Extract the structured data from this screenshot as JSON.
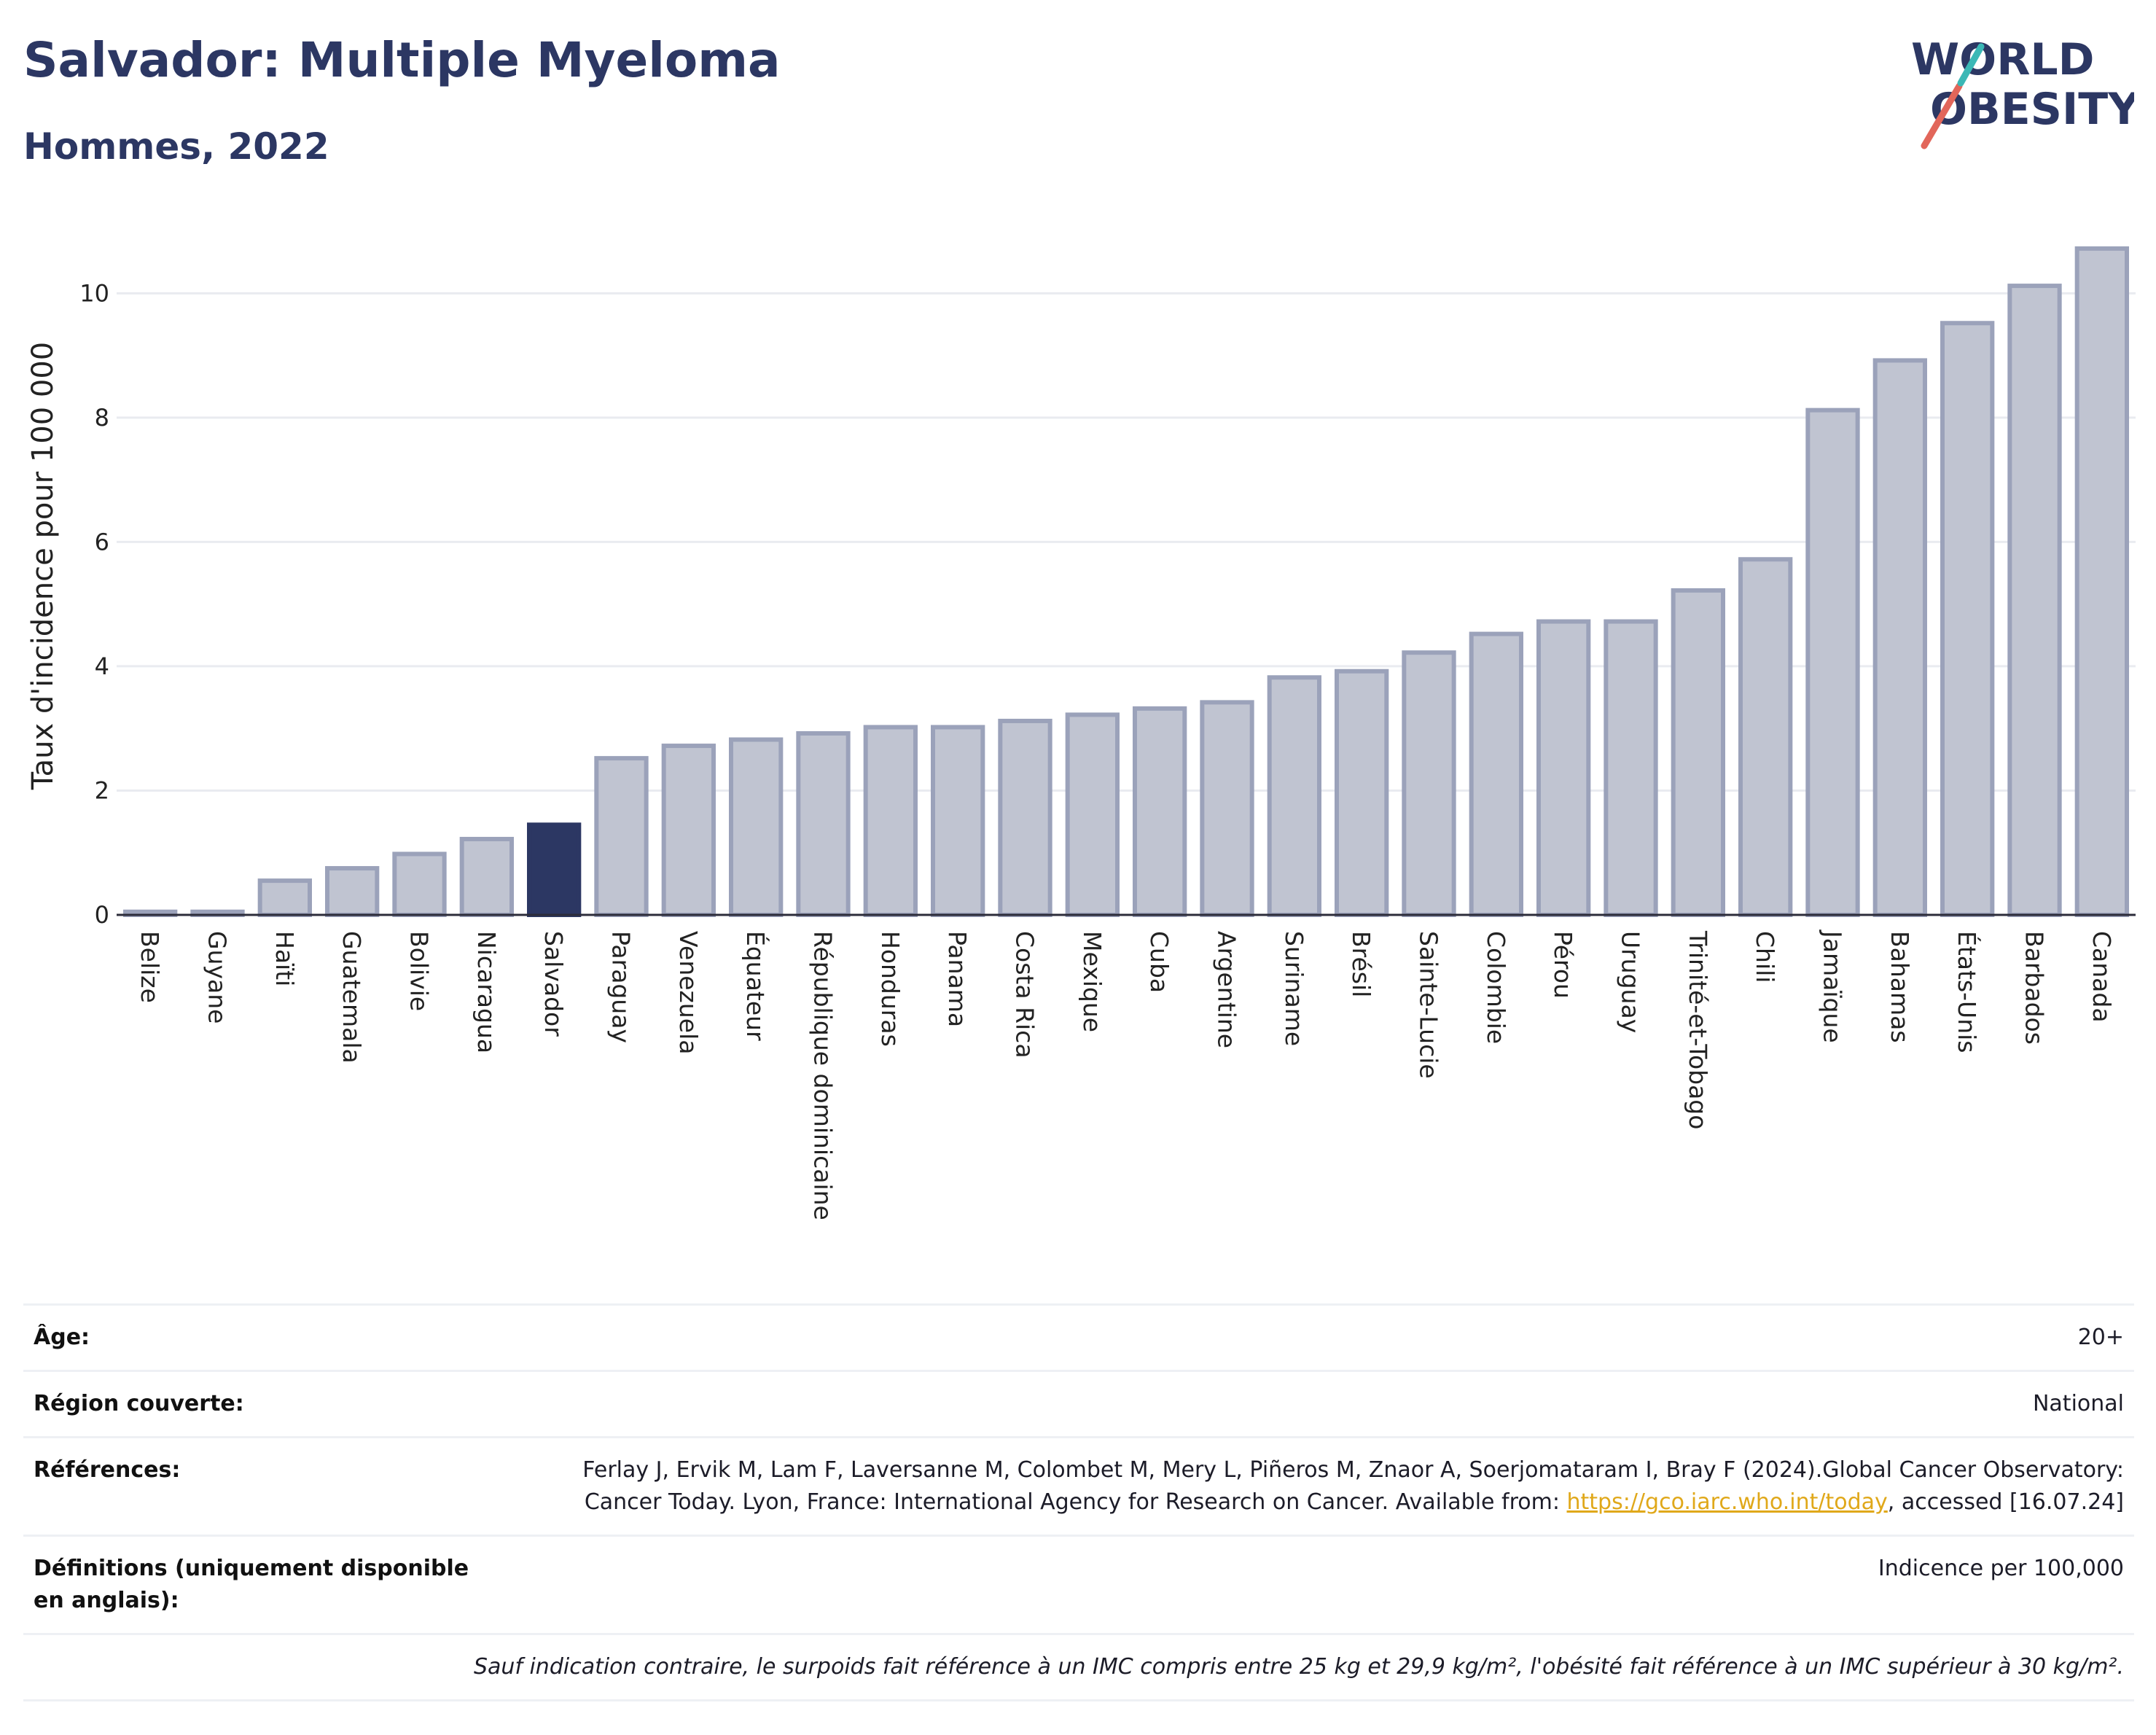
{
  "header": {
    "title": "Salvador: Multiple Myeloma",
    "subtitle": "Hommes, 2022",
    "logo_line1": "WORLD",
    "logo_line2": "OBESITY"
  },
  "colors": {
    "bar": "#c0c4d1",
    "bar_border": "#9ba2ba",
    "highlight": "#2c3763",
    "title": "#2c3763",
    "logo_red": "#e2665a",
    "logo_teal": "#3bb8b6"
  },
  "chart_data": {
    "type": "bar",
    "title": "",
    "xlabel": "",
    "ylabel": "Taux d'incidence pour 100 000",
    "ylim": [
      0,
      11.2
    ],
    "yticks": [
      0,
      2,
      4,
      6,
      8,
      10
    ],
    "grid": true,
    "highlight": "Salvador",
    "categories": [
      "Belize",
      "Guyane",
      "Haïti",
      "Guatemala",
      "Bolivie",
      "Nicaragua",
      "Salvador",
      "Paraguay",
      "Venezuela",
      "Équateur",
      "République dominicaine",
      "Honduras",
      "Panama",
      "Costa Rica",
      "Mexique",
      "Cuba",
      "Argentine",
      "Suriname",
      "Brésil",
      "Sainte-Lucie",
      "Colombie",
      "Pérou",
      "Uruguay",
      "Trinité-et-Tobago",
      "Chili",
      "Jamaïque",
      "Bahamas",
      "États-Unis",
      "Barbados",
      "Canada"
    ],
    "values": [
      0.05,
      0.05,
      0.55,
      0.75,
      0.98,
      1.22,
      1.45,
      2.52,
      2.72,
      2.82,
      2.92,
      3.02,
      3.02,
      3.12,
      3.22,
      3.32,
      3.42,
      3.82,
      3.92,
      4.22,
      4.52,
      4.72,
      4.72,
      5.22,
      5.72,
      8.12,
      8.92,
      9.52,
      10.12,
      10.72
    ]
  },
  "meta": {
    "age_label": "Âge:",
    "age_value": "20+",
    "region_label": "Région couverte:",
    "region_value": "National",
    "refs_label": "Références:",
    "refs_text_1": "Ferlay J, Ervik M, Lam F, Laversanne M, Colombet M, Mery L, Piñeros M, Znaor A, Soerjomataram I, Bray F (2024).Global Cancer Observatory: Cancer Today. Lyon, France: International Agency for Research on Cancer. Available from: ",
    "refs_link": "https://gco.iarc.who.int/today",
    "refs_text_2": ", accessed [16.07.24]",
    "defs_label": "Définitions (uniquement disponible en anglais):",
    "defs_value": "Indicence per 100,000",
    "note": "Sauf indication contraire, le surpoids fait référence à un IMC compris entre 25 kg et 29,9 kg/m², l'obésité fait référence à un IMC supérieur à 30 kg/m²."
  }
}
